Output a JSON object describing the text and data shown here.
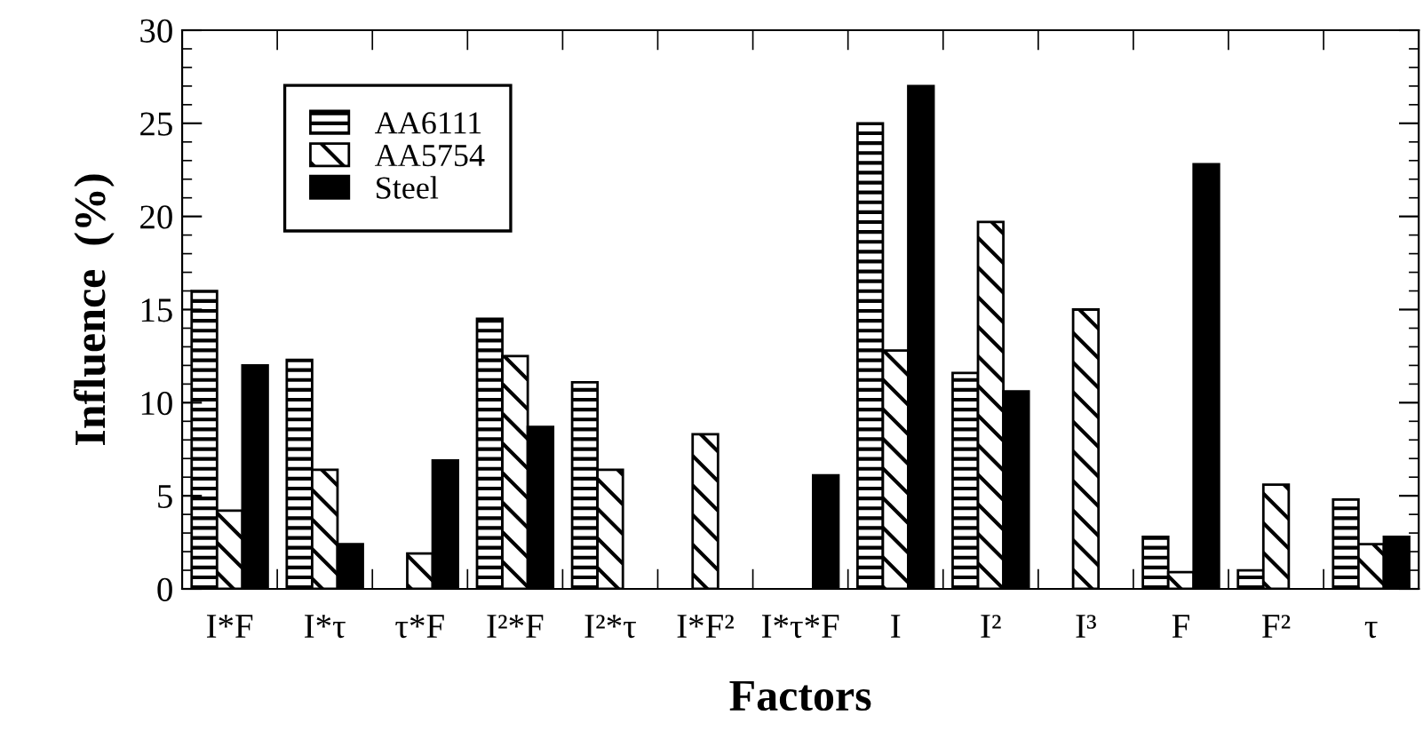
{
  "chart_data": {
    "type": "bar",
    "xlabel": "Factors",
    "ylabel": "Influence  (%)",
    "categories": [
      "I*F",
      "I*τ",
      "τ*F",
      "I²*F",
      "I²*τ",
      "I*F²",
      "I*τ*F",
      "I",
      "I²",
      "I³",
      "F",
      "F²",
      "τ"
    ],
    "series": [
      {
        "name": "AA6111",
        "color": "#000000",
        "values": [
          16,
          12.3,
          null,
          14.5,
          11.1,
          null,
          null,
          25,
          11.6,
          null,
          2.8,
          1,
          4.8
        ]
      },
      {
        "name": "AA5754",
        "color": "#000000",
        "values": [
          4.2,
          6.4,
          1.9,
          12.5,
          6.4,
          8.3,
          null,
          12.8,
          19.7,
          15,
          0.9,
          5.6,
          2.4
        ]
      },
      {
        "name": "Steel",
        "color": "#000000",
        "values": [
          12,
          2.4,
          6.9,
          8.7,
          null,
          null,
          6.1,
          27,
          10.6,
          null,
          22.8,
          null,
          2.8
        ]
      }
    ],
    "ylim": [
      0,
      30
    ],
    "yticks": [
      0,
      5,
      10,
      15,
      20,
      25,
      30
    ],
    "grid": false,
    "legend": "top left"
  }
}
